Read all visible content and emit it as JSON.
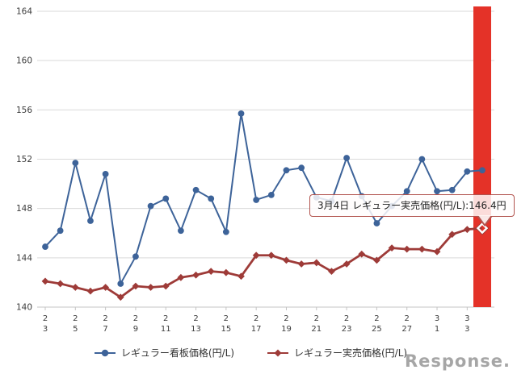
{
  "watermark": "Response.",
  "tooltip": {
    "text": "3月4日 レギュラー実売価格(円/L):146.4円"
  },
  "legend": {
    "items": [
      {
        "label": "レギュラー看板価格(円/L)"
      },
      {
        "label": "レギュラー実売価格(円/L)"
      }
    ]
  },
  "chart_data": {
    "type": "line",
    "title": "",
    "xlabel": "",
    "ylabel": "円/L",
    "ylim": [
      140,
      164
    ],
    "yticks": [
      140,
      144,
      148,
      152,
      156,
      160,
      164
    ],
    "grid": "horizontal",
    "legend_position": "bottom",
    "x_tick_every": 2,
    "categories": [
      "2/3",
      "2/4",
      "2/5",
      "2/6",
      "2/7",
      "2/8",
      "2/9",
      "2/10",
      "2/11",
      "2/12",
      "2/13",
      "2/14",
      "2/15",
      "2/16",
      "2/17",
      "2/18",
      "2/19",
      "2/20",
      "2/21",
      "2/22",
      "2/23",
      "2/24",
      "2/25",
      "2/26",
      "2/27",
      "2/28",
      "3/1",
      "3/2",
      "3/3",
      "3/4"
    ],
    "series": [
      {
        "name": "レギュラー看板価格(円/L)",
        "color": "#3d6399",
        "marker": "circle",
        "values": [
          144.9,
          146.2,
          151.7,
          147.0,
          150.8,
          141.9,
          144.1,
          148.2,
          148.8,
          146.2,
          149.5,
          148.8,
          146.1,
          155.7,
          148.7,
          149.1,
          151.1,
          151.3,
          148.9,
          148.6,
          152.1,
          149.0,
          146.8,
          148.2,
          149.4,
          152.0,
          149.4,
          149.5,
          151.0,
          151.1
        ]
      },
      {
        "name": "レギュラー実売価格(円/L)",
        "color": "#9e3b38",
        "marker": "diamond",
        "values": [
          142.1,
          141.9,
          141.6,
          141.3,
          141.6,
          140.8,
          141.7,
          141.6,
          141.7,
          142.4,
          142.6,
          142.9,
          142.8,
          142.5,
          144.2,
          144.2,
          143.8,
          143.5,
          143.6,
          142.9,
          143.5,
          144.3,
          143.8,
          144.8,
          144.7,
          144.7,
          144.5,
          145.9,
          146.3,
          146.4
        ]
      }
    ],
    "highlight": {
      "category": "3/4",
      "index": 29,
      "bar_color": "#e43228",
      "selected_series": "レギュラー実売価格(円/L)",
      "selected_value": 146.4,
      "selected_marker": "open-diamond"
    },
    "colors": {
      "gridline": "#d9d9d9",
      "axis_line": "#c4c4c4",
      "tick_label": "#3c3c3c"
    }
  }
}
